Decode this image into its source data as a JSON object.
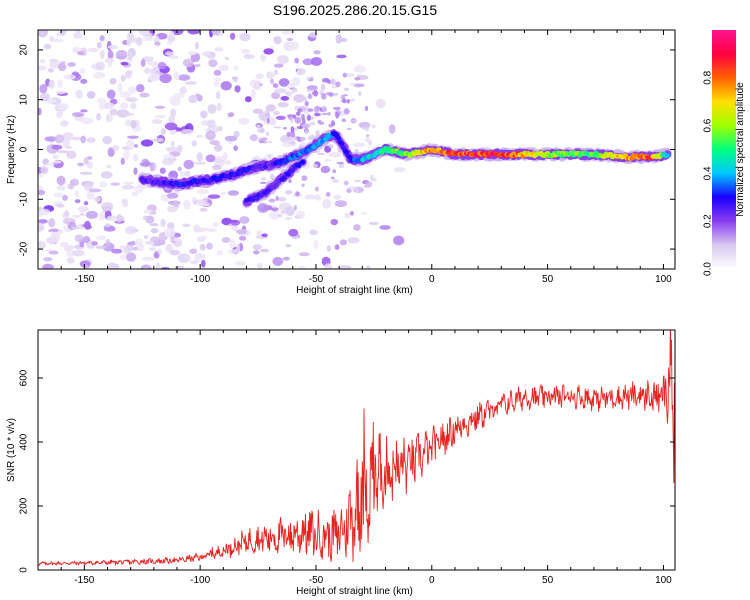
{
  "title": "S196.2025.286.20.15.G15",
  "chart_data": [
    {
      "type": "heatmap",
      "xlabel": "Height of straight line (km)",
      "ylabel": "Frequency (Hz)",
      "xlim": [
        -170,
        105
      ],
      "ylim": [
        -24,
        24
      ],
      "xticks": [
        -150,
        -100,
        -50,
        0,
        50,
        100
      ],
      "yticks": [
        -20,
        -10,
        0,
        10,
        20
      ],
      "colorbar": {
        "label": "Normalized spectral amplitude",
        "ticks": [
          "0.0",
          "0.2",
          "0.4",
          "0.6",
          "0.8"
        ],
        "range": [
          0,
          1
        ],
        "colors": [
          "#ffffff",
          "#d9c8f0",
          "#8a3df0",
          "#1a00ff",
          "#00c8ff",
          "#00ff80",
          "#a0ff00",
          "#ffe000",
          "#ff6000",
          "#ff0040",
          "#ff1493"
        ]
      },
      "ridge": {
        "x": [
          -125,
          -110,
          -95,
          -85,
          -80,
          -75,
          -70,
          -65,
          -60,
          -55,
          -50,
          -45,
          -42,
          -40,
          -35,
          -30,
          -25,
          -20,
          -10,
          0,
          10,
          30,
          50,
          70,
          85,
          95,
          102
        ],
        "y": [
          -6,
          -7,
          -6,
          -5,
          -4,
          -3.5,
          -3,
          -2.5,
          -1.5,
          -0.5,
          1,
          2.5,
          3,
          2,
          -2,
          -2,
          -1,
          0,
          -1,
          0,
          -1,
          -1,
          -1,
          -1,
          -1.5,
          -1.5,
          -1
        ],
        "amplitude": [
          0.25,
          0.3,
          0.3,
          0.3,
          0.3,
          0.25,
          0.25,
          0.3,
          0.35,
          0.35,
          0.4,
          0.4,
          0.35,
          0.3,
          0.3,
          0.4,
          0.45,
          0.5,
          0.6,
          0.8,
          0.85,
          0.9,
          0.6,
          0.55,
          0.8,
          0.85,
          0.4
        ]
      },
      "branch": {
        "x": [
          -80,
          -75,
          -70,
          -65,
          -60,
          -55
        ],
        "y": [
          -10.5,
          -9.5,
          -8,
          -6,
          -4,
          -2
        ],
        "amplitude": [
          0.25,
          0.3,
          0.25,
          0.25,
          0.3,
          0.3
        ]
      }
    },
    {
      "type": "line",
      "xlabel": "Height of straight line (km)",
      "ylabel": "SNR (10 * v/v)",
      "xlim": [
        -170,
        105
      ],
      "ylim": [
        0,
        750
      ],
      "xticks": [
        -150,
        -100,
        -50,
        0,
        50,
        100
      ],
      "yticks": [
        0,
        200,
        400,
        600
      ],
      "color": "#e8231f",
      "x": [
        -170,
        -150,
        -130,
        -110,
        -100,
        -90,
        -80,
        -70,
        -60,
        -55,
        -50,
        -45,
        -40,
        -35,
        -30,
        -25,
        -20,
        -10,
        0,
        10,
        20,
        30,
        40,
        50,
        60,
        70,
        80,
        90,
        100,
        104
      ],
      "y": [
        20,
        22,
        25,
        30,
        40,
        60,
        90,
        100,
        110,
        120,
        110,
        105,
        110,
        160,
        230,
        300,
        310,
        330,
        380,
        440,
        480,
        515,
        540,
        540,
        545,
        535,
        540,
        545,
        540,
        550
      ],
      "noise": [
        5,
        5,
        7,
        8,
        10,
        20,
        30,
        40,
        50,
        60,
        60,
        60,
        70,
        100,
        150,
        130,
        90,
        70,
        50,
        40,
        35,
        30,
        30,
        30,
        30,
        30,
        30,
        35,
        50,
        150
      ]
    }
  ]
}
